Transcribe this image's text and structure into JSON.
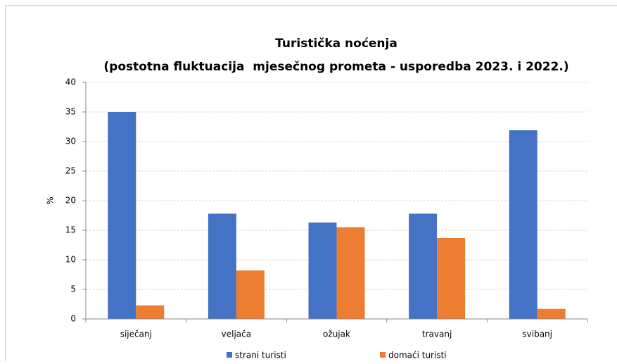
{
  "chart_data": {
    "type": "bar",
    "title": "Turistička noćenja",
    "subtitle": "(postotna fluktuacija  mjesečnog prometa - usporedba 2023. i 2022.)",
    "y_label": "%",
    "categories": [
      "siječanj",
      "veljača",
      "ožujak",
      "travanj",
      "svibanj"
    ],
    "series": [
      {
        "name": "strani turisti",
        "color": "#4472c4",
        "values": [
          35,
          17.8,
          16.3,
          17.8,
          31.9
        ]
      },
      {
        "name": "domaći turisti",
        "color": "#ed7d31",
        "values": [
          2.3,
          8.2,
          15.5,
          13.7,
          1.7
        ]
      }
    ],
    "ylim": [
      0,
      40
    ],
    "yticks": [
      0,
      5,
      10,
      15,
      20,
      25,
      30,
      35,
      40
    ],
    "grid": true,
    "legend": "bottom"
  }
}
